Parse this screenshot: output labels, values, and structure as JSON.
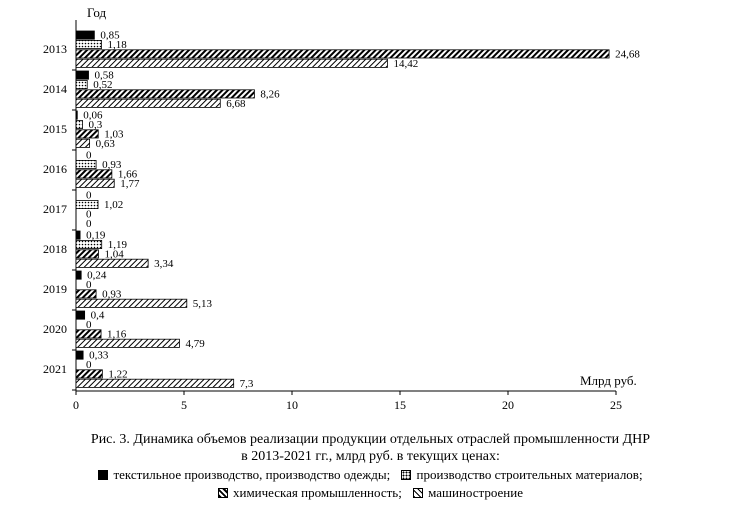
{
  "chart_data": {
    "type": "bar",
    "orientation": "horizontal",
    "y_axis_title": "Год",
    "x_axis_unit_label": "Млрд руб.",
    "xlim": [
      0,
      25
    ],
    "x_ticks": [
      "0",
      "5",
      "10",
      "15",
      "20",
      "25"
    ],
    "grid": false,
    "legend_position": "bottom",
    "categories": [
      "2013",
      "2014",
      "2015",
      "2016",
      "2017",
      "2018",
      "2019",
      "2020",
      "2021"
    ],
    "series": [
      {
        "name": "текстильное производство, производство одежды",
        "values": [
          0.85,
          0.58,
          0.06,
          0,
          0,
          0.19,
          0.24,
          0.4,
          0.33
        ],
        "labels": [
          "0,85",
          "0,58",
          "0,06",
          "0",
          "0",
          "0,19",
          "0,24",
          "0,4",
          "0,33"
        ]
      },
      {
        "name": "производство строительных материалов",
        "values": [
          1.18,
          0.52,
          0.3,
          0.93,
          1.02,
          1.19,
          0,
          0,
          0
        ],
        "labels": [
          "1,18",
          "0,52",
          "0,3",
          "0,93",
          "1,02",
          "1,19",
          "0",
          "0",
          "0"
        ]
      },
      {
        "name": "химическая промышленность",
        "values": [
          24.68,
          8.26,
          1.03,
          1.66,
          0,
          1.04,
          0.93,
          1.16,
          1.22
        ],
        "labels": [
          "24,68",
          "8,26",
          "1,03",
          "1,66",
          "0",
          "1,04",
          "0,93",
          "1,16",
          "1,22"
        ]
      },
      {
        "name": "машиностроение",
        "values": [
          14.42,
          6.68,
          0.63,
          1.77,
          0,
          3.34,
          5.13,
          4.79,
          7.3
        ],
        "labels": [
          "14,42",
          "6,68",
          "0,63",
          "1,77",
          "0",
          "3,34",
          "5,13",
          "4,79",
          "7,3"
        ]
      }
    ]
  },
  "caption": {
    "line1": "Рис. 3. Динамика объемов реализации продукции отдельных отраслей промышленности ДНР",
    "line2": "в 2013-2021 гг., млрд руб. в текущих ценах:"
  },
  "legend": {
    "item1": "текстильное производство, производство одежды;",
    "item2": "производство строительных материалов;",
    "item3": "химическая промышленность;",
    "item4": "машиностроение"
  }
}
